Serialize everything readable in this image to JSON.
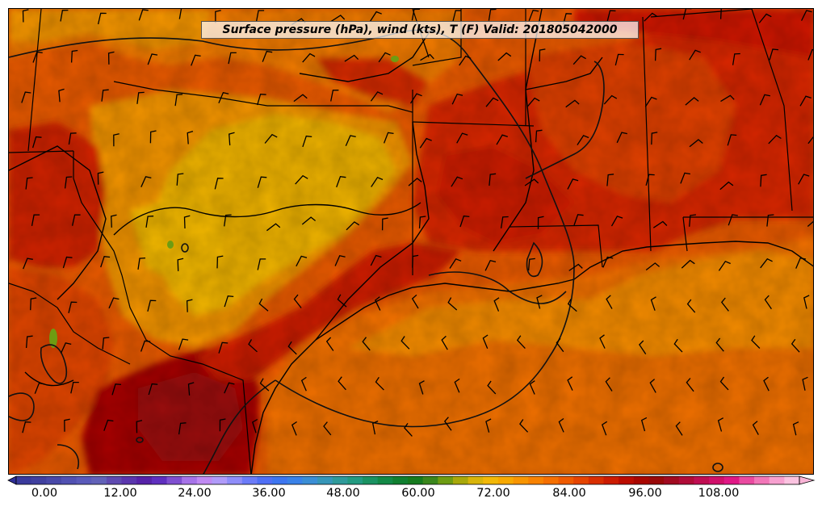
{
  "title": "Surface pressure (hPa), wind (kts), T (F) Valid: 201805042000",
  "colorbar": {
    "tick_labels": [
      "0.00",
      "12.00",
      "24.00",
      "36.00",
      "48.00",
      "60.00",
      "72.00",
      "84.00",
      "96.00",
      "108.00"
    ],
    "colors": [
      "#3a3a9c",
      "#40409f",
      "#4848a8",
      "#5151b2",
      "#5a5aba",
      "#6262b8",
      "#5f4ab0",
      "#5a36ad",
      "#5622a8",
      "#5f2fbf",
      "#7f4fd0",
      "#a673e8",
      "#c08af2",
      "#b09bf9",
      "#8f8df9",
      "#6b7bf8",
      "#4f6ff5",
      "#3d75f0",
      "#3a82e8",
      "#3b8ed5",
      "#3696b8",
      "#2f9a9a",
      "#239a80",
      "#1a9262",
      "#138946",
      "#107f30",
      "#167a1e",
      "#3a861c",
      "#6e9c12",
      "#a8a80a",
      "#d8b40a",
      "#f2b808",
      "#f7a800",
      "#f89500",
      "#f88200",
      "#f56f00",
      "#ee5a00",
      "#e54400",
      "#d92e00",
      "#cc1b00",
      "#bb0c00",
      "#a80600",
      "#990909",
      "#a10a20",
      "#b00c38",
      "#c00e52",
      "#d0106a",
      "#e01785",
      "#ea4aa0",
      "#f276b8",
      "#f7a0cf",
      "#fbc3e0"
    ],
    "over_color": "#f9b4d6",
    "under_color": "#2e2e96"
  }
}
